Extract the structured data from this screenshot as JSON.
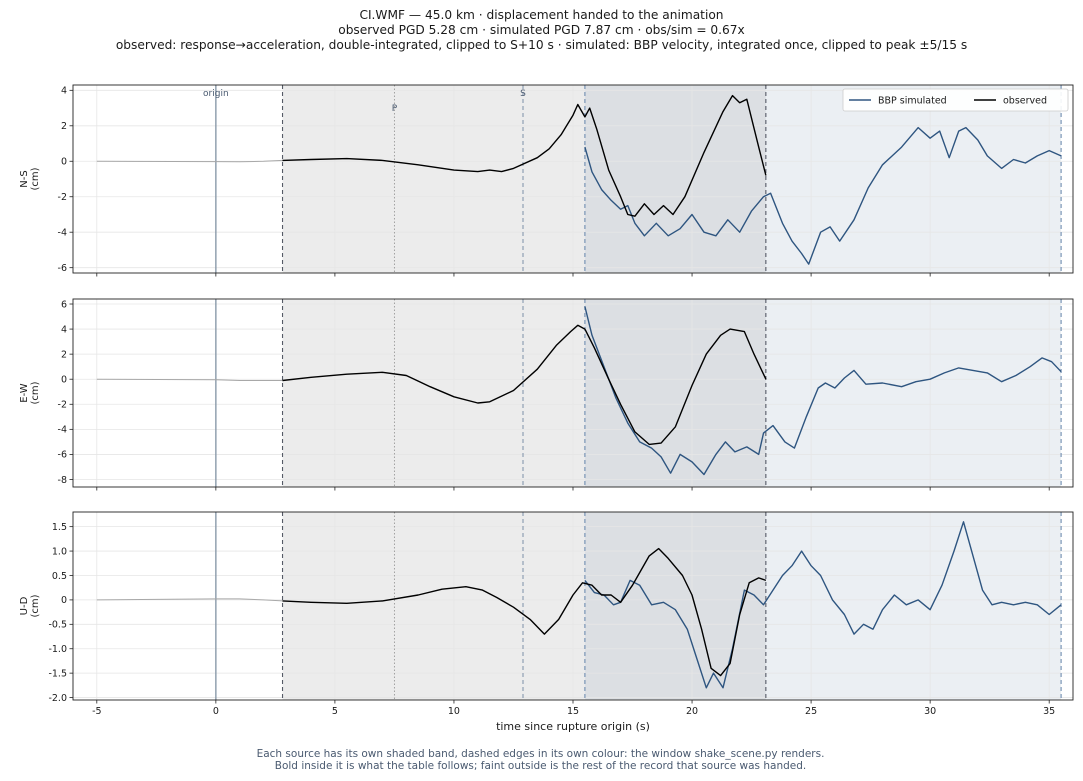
{
  "header": {
    "line1": "CI.WMF  —  45.0 km   ·   displacement handed to the animation",
    "line2": "observed PGD 5.28 cm   ·   simulated PGD 7.87 cm   ·   obs/sim = 0.67x",
    "line3": "observed: response→acceleration, double-integrated, clipped to S+10 s   ·   simulated: BBP velocity, integrated once, clipped to peak ±5/15 s"
  },
  "footer": {
    "line1": "Each source has its own shaded band, dashed edges in its own colour: the window shake_scene.py renders.",
    "line2": "Bold inside it is what the table follows;   faint outside is the rest of the record that source was handed."
  },
  "colors": {
    "simulated": "#2e5580",
    "observed": "#000000",
    "faint": "#a8a8a8",
    "origin_line": "#8a9aaa",
    "obs_band": "#ececec",
    "sim_band": "#ebeff3",
    "overlap_band": "#dcdfe3",
    "grid": "#e6e6e6"
  },
  "chart_data": {
    "type": "line",
    "xlabel": "time since rupture origin (s)",
    "xlim": [
      -6,
      36
    ],
    "xticks": [
      -5,
      0,
      5,
      10,
      15,
      20,
      25,
      30,
      35
    ],
    "markers": {
      "origin": {
        "t": 0,
        "label": "origin"
      },
      "P": {
        "t": 7.5,
        "label": "P"
      },
      "S": {
        "t": 12.9,
        "label": "S"
      }
    },
    "windows": {
      "observed": [
        2.8,
        23.1
      ],
      "simulated": [
        15.5,
        35.5
      ]
    },
    "legend": {
      "position": "top-right",
      "entries": [
        {
          "label": "BBP simulated",
          "series": "simulated"
        },
        {
          "label": "observed",
          "series": "observed"
        }
      ]
    },
    "panels": [
      {
        "ylabel": "N-S\n(cm)",
        "ylim": [
          -6.3,
          4.3
        ],
        "yticks": [
          -6,
          -4,
          -2,
          0,
          2,
          4
        ],
        "observed_faint": [
          [
            -5,
            0
          ],
          [
            0,
            -0.02
          ],
          [
            1,
            -0.03
          ],
          [
            2,
            0
          ],
          [
            2.8,
            0.05
          ]
        ],
        "observed": [
          [
            2.8,
            0.05
          ],
          [
            4,
            0.1
          ],
          [
            5.5,
            0.15
          ],
          [
            7,
            0.05
          ],
          [
            8.5,
            -0.2
          ],
          [
            10,
            -0.5
          ],
          [
            11,
            -0.58
          ],
          [
            11.5,
            -0.5
          ],
          [
            12,
            -0.58
          ],
          [
            12.5,
            -0.4
          ],
          [
            13.5,
            0.2
          ],
          [
            14,
            0.7
          ],
          [
            14.5,
            1.5
          ],
          [
            15,
            2.6
          ],
          [
            15.2,
            3.2
          ],
          [
            15.5,
            2.5
          ],
          [
            15.7,
            3.0
          ],
          [
            16,
            1.8
          ],
          [
            16.5,
            -0.5
          ],
          [
            17,
            -2.0
          ],
          [
            17.3,
            -3.0
          ],
          [
            17.6,
            -3.1
          ],
          [
            18,
            -2.4
          ],
          [
            18.4,
            -3.0
          ],
          [
            18.8,
            -2.5
          ],
          [
            19.2,
            -3.0
          ],
          [
            19.7,
            -2.0
          ],
          [
            20.5,
            0.5
          ],
          [
            21.3,
            2.8
          ],
          [
            21.7,
            3.7
          ],
          [
            22,
            3.3
          ],
          [
            22.3,
            3.5
          ],
          [
            22.8,
            0.8
          ],
          [
            23.1,
            -0.8
          ]
        ],
        "simulated_faint": [],
        "simulated": [
          [
            15.5,
            0.8
          ],
          [
            15.8,
            -0.6
          ],
          [
            16.2,
            -1.6
          ],
          [
            16.6,
            -2.2
          ],
          [
            17,
            -2.7
          ],
          [
            17.3,
            -2.5
          ],
          [
            17.6,
            -3.5
          ],
          [
            18,
            -4.2
          ],
          [
            18.5,
            -3.5
          ],
          [
            19,
            -4.2
          ],
          [
            19.5,
            -3.8
          ],
          [
            20,
            -3.0
          ],
          [
            20.5,
            -4.0
          ],
          [
            21,
            -4.2
          ],
          [
            21.5,
            -3.3
          ],
          [
            22,
            -4.0
          ],
          [
            22.5,
            -2.8
          ],
          [
            23,
            -2.0
          ],
          [
            23.3,
            -1.8
          ],
          [
            23.8,
            -3.5
          ],
          [
            24.2,
            -4.5
          ],
          [
            24.6,
            -5.2
          ],
          [
            24.9,
            -5.8
          ],
          [
            25.4,
            -4.0
          ],
          [
            25.8,
            -3.7
          ],
          [
            26.2,
            -4.5
          ],
          [
            26.8,
            -3.3
          ],
          [
            27.4,
            -1.5
          ],
          [
            28,
            -0.2
          ],
          [
            28.8,
            0.8
          ],
          [
            29.5,
            1.9
          ],
          [
            30,
            1.3
          ],
          [
            30.4,
            1.7
          ],
          [
            30.8,
            0.2
          ],
          [
            31.2,
            1.7
          ],
          [
            31.5,
            1.9
          ],
          [
            32,
            1.2
          ],
          [
            32.4,
            0.3
          ],
          [
            33,
            -0.4
          ],
          [
            33.5,
            0.1
          ],
          [
            34,
            -0.1
          ],
          [
            34.5,
            0.3
          ],
          [
            35,
            0.6
          ],
          [
            35.5,
            0.3
          ]
        ]
      },
      {
        "ylabel": "E-W\n(cm)",
        "ylim": [
          -8.6,
          6.4
        ],
        "yticks": [
          -8,
          -6,
          -4,
          -2,
          0,
          2,
          4,
          6
        ],
        "observed_faint": [
          [
            -5,
            0
          ],
          [
            0,
            -0.05
          ],
          [
            1,
            -0.1
          ],
          [
            2,
            -0.1
          ],
          [
            2.8,
            -0.1
          ]
        ],
        "observed": [
          [
            2.8,
            -0.1
          ],
          [
            4,
            0.15
          ],
          [
            5.5,
            0.4
          ],
          [
            7,
            0.55
          ],
          [
            8,
            0.3
          ],
          [
            9,
            -0.6
          ],
          [
            10,
            -1.4
          ],
          [
            11,
            -1.9
          ],
          [
            11.5,
            -1.8
          ],
          [
            12.5,
            -0.9
          ],
          [
            13.5,
            0.8
          ],
          [
            14.3,
            2.7
          ],
          [
            14.9,
            3.8
          ],
          [
            15.2,
            4.3
          ],
          [
            15.5,
            4.0
          ],
          [
            15.9,
            2.5
          ],
          [
            16.5,
            0.0
          ],
          [
            17,
            -2.0
          ],
          [
            17.6,
            -4.2
          ],
          [
            18.2,
            -5.2
          ],
          [
            18.7,
            -5.1
          ],
          [
            19.3,
            -3.8
          ],
          [
            20,
            -0.5
          ],
          [
            20.6,
            2.0
          ],
          [
            21.2,
            3.5
          ],
          [
            21.6,
            4.0
          ],
          [
            22.2,
            3.8
          ],
          [
            22.6,
            2.0
          ],
          [
            23.1,
            0.0
          ]
        ],
        "simulated_faint": [],
        "simulated": [
          [
            15.5,
            5.8
          ],
          [
            15.8,
            3.5
          ],
          [
            16.3,
            1.0
          ],
          [
            16.8,
            -1.5
          ],
          [
            17.3,
            -3.5
          ],
          [
            17.8,
            -5.0
          ],
          [
            18.3,
            -5.5
          ],
          [
            18.7,
            -6.2
          ],
          [
            19.1,
            -7.5
          ],
          [
            19.5,
            -6.0
          ],
          [
            20,
            -6.6
          ],
          [
            20.5,
            -7.6
          ],
          [
            21,
            -6.0
          ],
          [
            21.4,
            -5.0
          ],
          [
            21.8,
            -5.8
          ],
          [
            22.3,
            -5.4
          ],
          [
            22.8,
            -6.0
          ],
          [
            23,
            -4.3
          ],
          [
            23.4,
            -3.7
          ],
          [
            23.9,
            -5.0
          ],
          [
            24.3,
            -5.5
          ],
          [
            24.8,
            -3.0
          ],
          [
            25.3,
            -0.7
          ],
          [
            25.6,
            -0.3
          ],
          [
            26,
            -0.7
          ],
          [
            26.4,
            0.1
          ],
          [
            26.8,
            0.7
          ],
          [
            27.3,
            -0.4
          ],
          [
            28,
            -0.3
          ],
          [
            28.8,
            -0.6
          ],
          [
            29.4,
            -0.2
          ],
          [
            30,
            0.0
          ],
          [
            30.6,
            0.5
          ],
          [
            31.2,
            0.9
          ],
          [
            31.8,
            0.7
          ],
          [
            32.4,
            0.5
          ],
          [
            33,
            -0.2
          ],
          [
            33.6,
            0.3
          ],
          [
            34.2,
            1.0
          ],
          [
            34.7,
            1.7
          ],
          [
            35.1,
            1.4
          ],
          [
            35.5,
            0.6
          ]
        ]
      },
      {
        "ylabel": "U-D\n(cm)",
        "ylim": [
          -2.05,
          1.8
        ],
        "yticks": [
          -2.0,
          -1.5,
          -1.0,
          -0.5,
          0.0,
          0.5,
          1.0,
          1.5
        ],
        "observed_faint": [
          [
            -5,
            0
          ],
          [
            0,
            0.02
          ],
          [
            1,
            0.02
          ],
          [
            2,
            0.0
          ],
          [
            2.8,
            -0.02
          ]
        ],
        "observed": [
          [
            2.8,
            -0.02
          ],
          [
            4,
            -0.05
          ],
          [
            5.5,
            -0.07
          ],
          [
            7,
            -0.02
          ],
          [
            8.5,
            0.1
          ],
          [
            9.5,
            0.22
          ],
          [
            10.5,
            0.27
          ],
          [
            11.2,
            0.2
          ],
          [
            11.8,
            0.05
          ],
          [
            12.5,
            -0.15
          ],
          [
            13.2,
            -0.4
          ],
          [
            13.8,
            -0.7
          ],
          [
            14.4,
            -0.4
          ],
          [
            15,
            0.1
          ],
          [
            15.4,
            0.35
          ],
          [
            15.8,
            0.3
          ],
          [
            16.2,
            0.1
          ],
          [
            16.6,
            0.1
          ],
          [
            17,
            -0.05
          ],
          [
            17.5,
            0.3
          ],
          [
            18.2,
            0.9
          ],
          [
            18.6,
            1.05
          ],
          [
            19,
            0.85
          ],
          [
            19.6,
            0.5
          ],
          [
            20,
            0.1
          ],
          [
            20.4,
            -0.6
          ],
          [
            20.8,
            -1.4
          ],
          [
            21.2,
            -1.55
          ],
          [
            21.6,
            -1.3
          ],
          [
            22,
            -0.3
          ],
          [
            22.4,
            0.35
          ],
          [
            22.8,
            0.45
          ],
          [
            23.1,
            0.4
          ]
        ],
        "simulated_faint": [],
        "simulated": [
          [
            15.5,
            0.4
          ],
          [
            15.9,
            0.15
          ],
          [
            16.3,
            0.1
          ],
          [
            16.7,
            -0.1
          ],
          [
            17,
            -0.05
          ],
          [
            17.4,
            0.4
          ],
          [
            17.8,
            0.3
          ],
          [
            18.3,
            -0.1
          ],
          [
            18.8,
            -0.05
          ],
          [
            19.3,
            -0.2
          ],
          [
            19.8,
            -0.6
          ],
          [
            20.2,
            -1.2
          ],
          [
            20.6,
            -1.8
          ],
          [
            20.9,
            -1.5
          ],
          [
            21.3,
            -1.8
          ],
          [
            21.7,
            -1.0
          ],
          [
            22.2,
            0.2
          ],
          [
            22.6,
            0.1
          ],
          [
            23,
            -0.1
          ],
          [
            23.4,
            0.2
          ],
          [
            23.8,
            0.5
          ],
          [
            24.2,
            0.7
          ],
          [
            24.6,
            1.0
          ],
          [
            25,
            0.7
          ],
          [
            25.4,
            0.5
          ],
          [
            25.9,
            0.0
          ],
          [
            26.4,
            -0.3
          ],
          [
            26.8,
            -0.7
          ],
          [
            27.2,
            -0.5
          ],
          [
            27.6,
            -0.6
          ],
          [
            28,
            -0.2
          ],
          [
            28.5,
            0.1
          ],
          [
            29,
            -0.1
          ],
          [
            29.5,
            0.0
          ],
          [
            30,
            -0.2
          ],
          [
            30.5,
            0.3
          ],
          [
            31,
            1.0
          ],
          [
            31.4,
            1.6
          ],
          [
            31.8,
            0.9
          ],
          [
            32.2,
            0.2
          ],
          [
            32.6,
            -0.1
          ],
          [
            33,
            -0.05
          ],
          [
            33.5,
            -0.1
          ],
          [
            34,
            -0.05
          ],
          [
            34.5,
            -0.1
          ],
          [
            35,
            -0.3
          ],
          [
            35.5,
            -0.1
          ]
        ]
      }
    ]
  }
}
